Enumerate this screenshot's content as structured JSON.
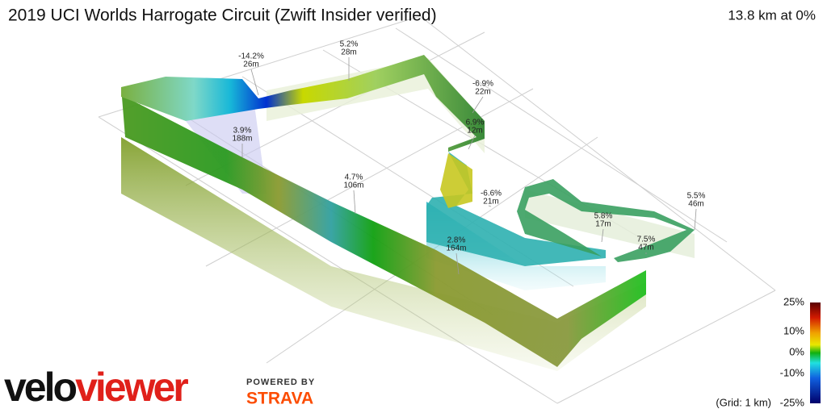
{
  "header": {
    "title": "2019 UCI Worlds Harrogate Circuit (Zwift Insider verified)",
    "summary": "13.8 km at 0%"
  },
  "annotations": [
    {
      "grade": "-14.2%",
      "length": "26m"
    },
    {
      "grade": "5.2%",
      "length": "28m"
    },
    {
      "grade": "-6.9%",
      "length": "22m"
    },
    {
      "grade": "6.9%",
      "length": "12m"
    },
    {
      "grade": "3.9%",
      "length": "188m"
    },
    {
      "grade": "4.7%",
      "length": "106m"
    },
    {
      "grade": "-6.6%",
      "length": "21m"
    },
    {
      "grade": "5.5%",
      "length": "46m"
    },
    {
      "grade": "5.8%",
      "length": "17m"
    },
    {
      "grade": "7.5%",
      "length": "47m"
    },
    {
      "grade": "2.8%",
      "length": "164m"
    }
  ],
  "legend": {
    "labels": [
      "25%",
      "10%",
      "0%",
      "-10%",
      "-25%"
    ],
    "grid_note": "(Grid: 1 km)"
  },
  "branding": {
    "logo": [
      "velo",
      "viewer"
    ],
    "powered_by": "POWERED BY",
    "strava": "STRAVA"
  }
}
